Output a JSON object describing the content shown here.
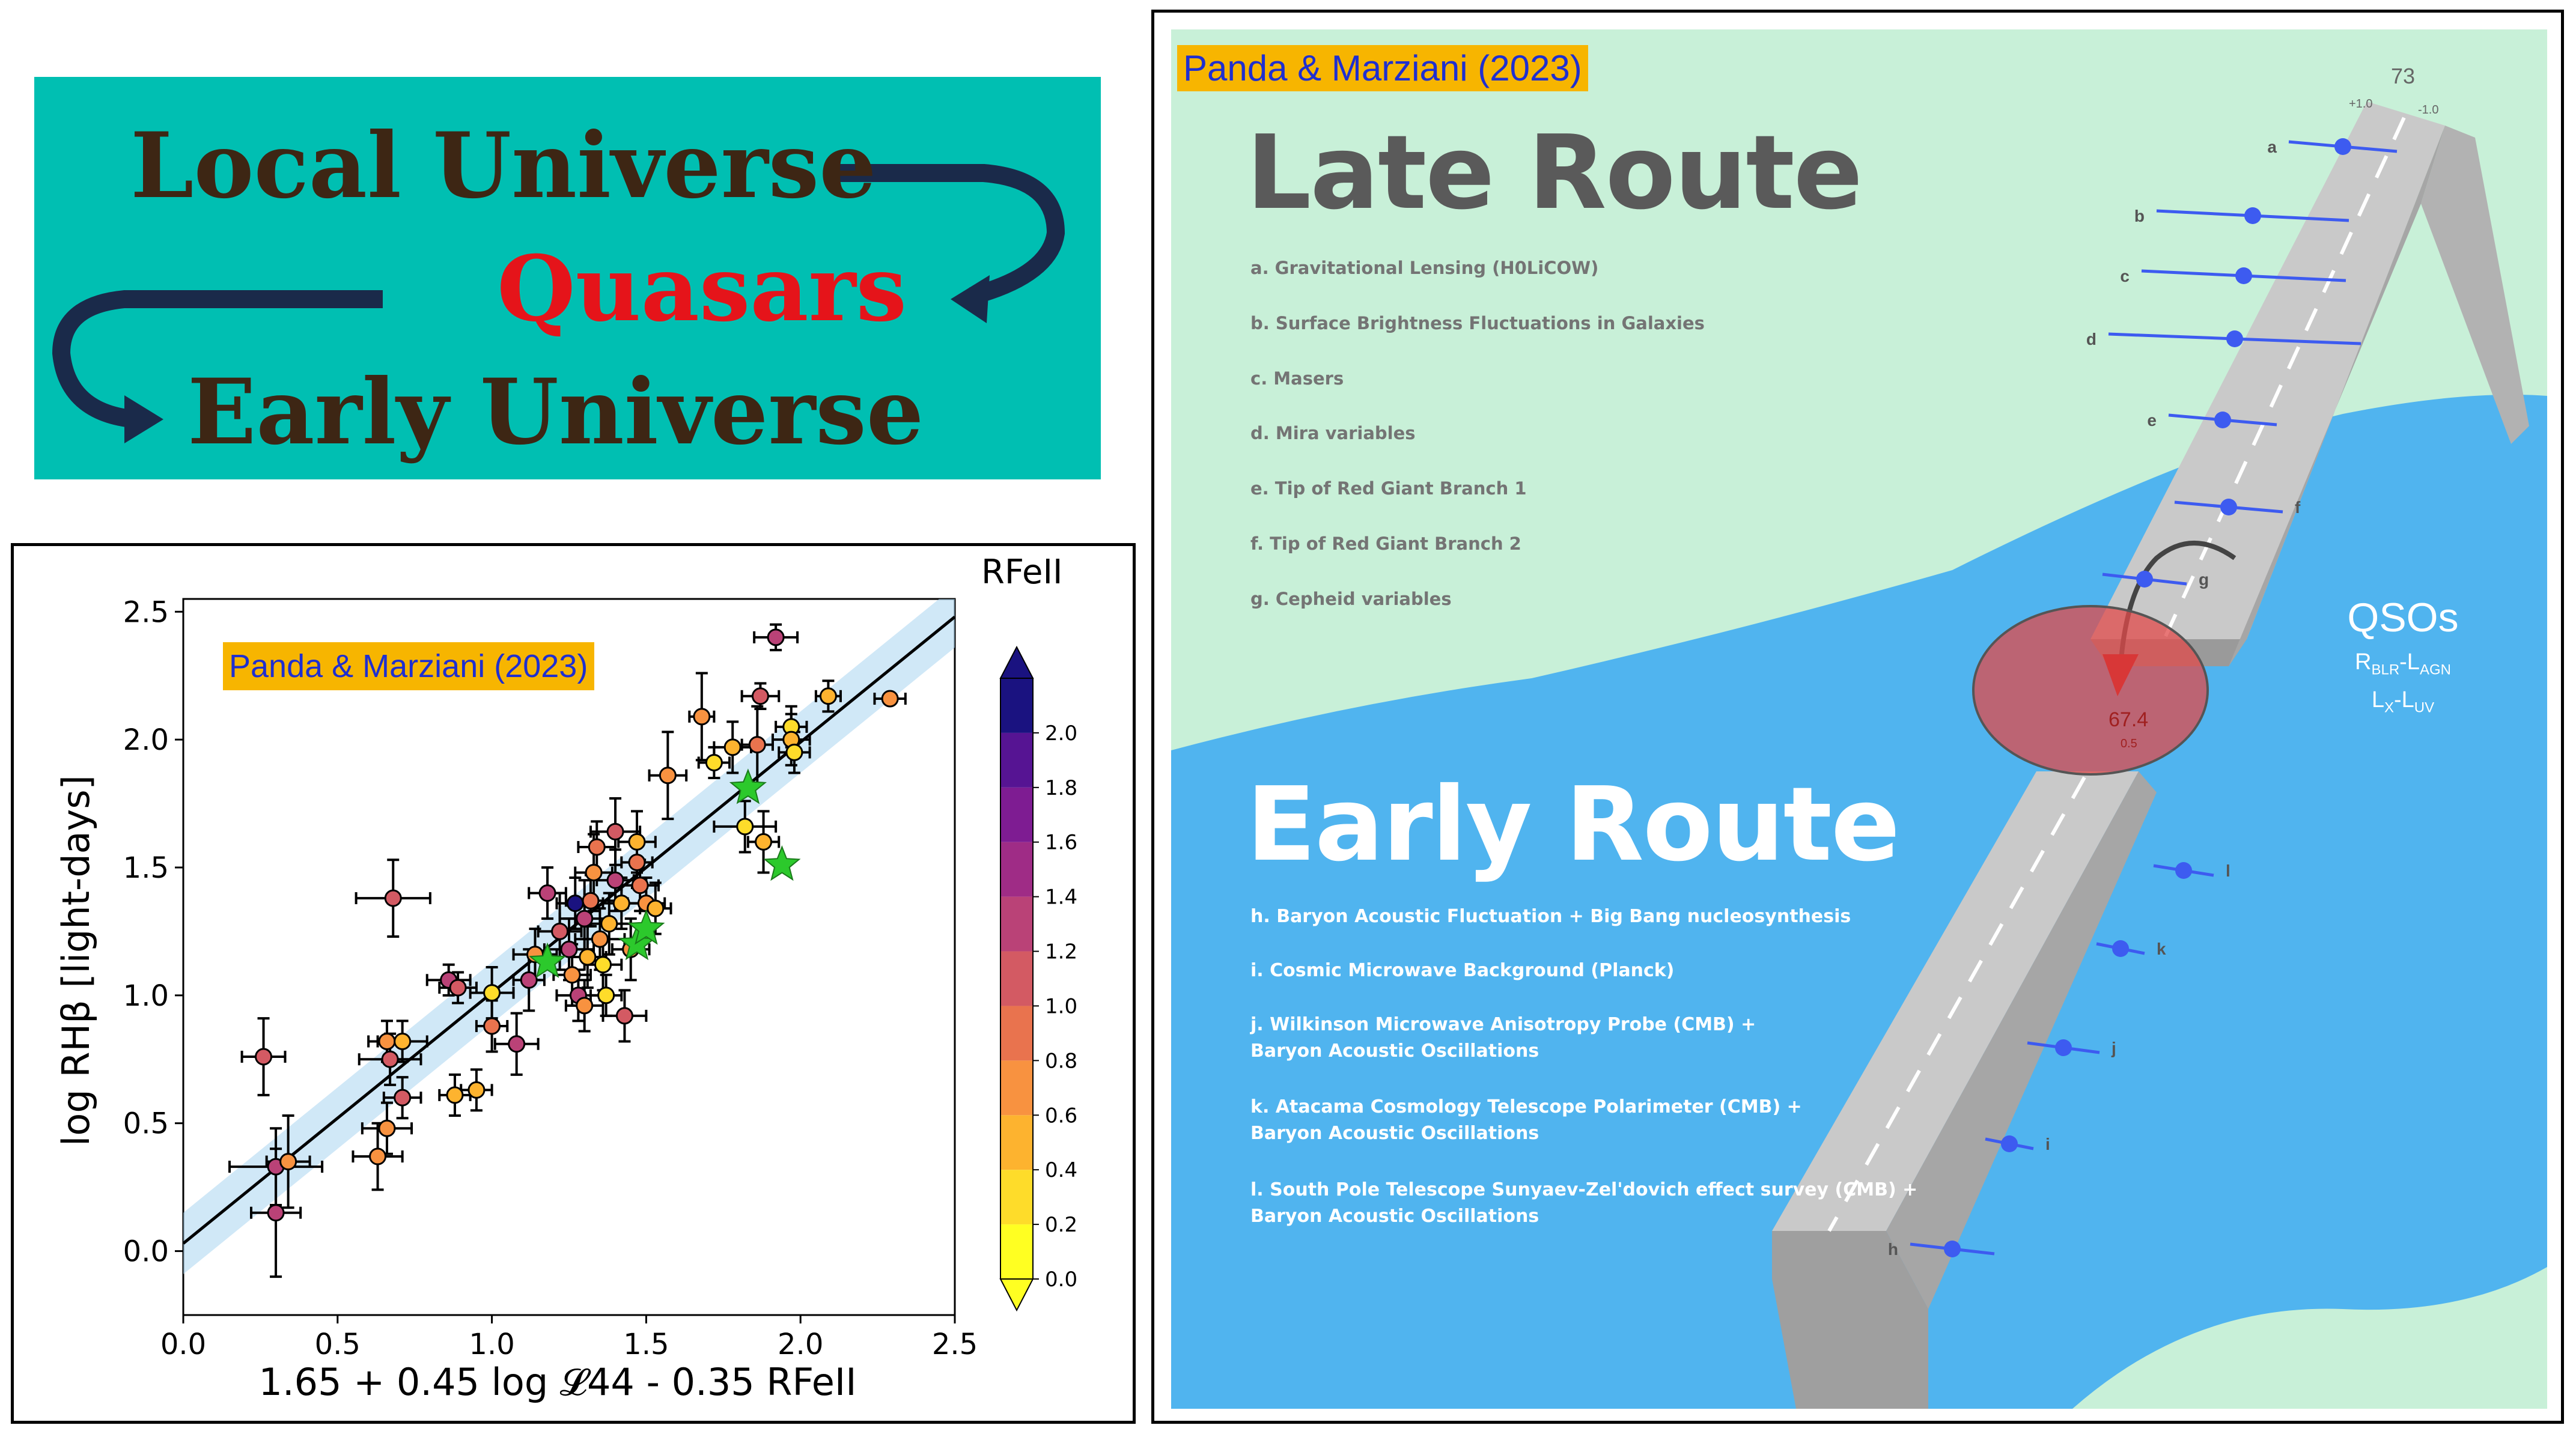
{
  "banner": {
    "line1": "Local Universe",
    "line2": "Quasars",
    "line3": "Early Universe",
    "background": "#00bfb2",
    "text_color": "#3d2614",
    "highlight_color": "#e5141a",
    "arrow_color": "#1a2a4a"
  },
  "chart_data": {
    "type": "scatter",
    "title": "",
    "badge": "Panda & Marziani (2023)",
    "xlabel": "1.65 + 0.45 log 𝓛44 - 0.35 RFeII",
    "ylabel": "log RHβ [light-days]",
    "xlim": [
      0.0,
      2.5
    ],
    "ylim": [
      -0.25,
      2.55
    ],
    "xticks": [
      "0.0",
      "0.5",
      "1.0",
      "1.5",
      "2.0",
      "2.5"
    ],
    "yticks": [
      "0.0",
      "0.5",
      "1.0",
      "1.5",
      "2.0",
      "2.5"
    ],
    "fit_line": {
      "x": [
        0.0,
        2.5
      ],
      "y": [
        0.03,
        2.48
      ],
      "band_halfwidth": 0.12,
      "band_color": "#a9d6f0"
    },
    "colorbar": {
      "label": "RFeII",
      "ticks": [
        "0.0",
        "0.2",
        "0.4",
        "0.6",
        "0.8",
        "1.0",
        "1.2",
        "1.4",
        "1.6",
        "1.8",
        "2.0"
      ],
      "range": [
        0.0,
        2.2
      ],
      "colors": [
        "#ffff22",
        "#fedc2a",
        "#fdb32f",
        "#f89240",
        "#e9734e",
        "#d35a63",
        "#ba4277",
        "#9f2c86",
        "#7e1c92",
        "#561493",
        "#1a1280"
      ]
    },
    "points": [
      {
        "x": 1.92,
        "y": 2.4,
        "xe": 0.07,
        "ye": 0.05,
        "c": 1.4
      },
      {
        "x": 2.29,
        "y": 2.16,
        "xe": 0.05,
        "ye": 0.02,
        "c": 0.6
      },
      {
        "x": 2.09,
        "y": 2.17,
        "xe": 0.04,
        "ye": 0.06,
        "c": 0.4
      },
      {
        "x": 1.97,
        "y": 2.05,
        "xe": 0.05,
        "ye": 0.08,
        "c": 0.2
      },
      {
        "x": 1.97,
        "y": 2.0,
        "xe": 0.06,
        "ye": 0.1,
        "c": 0.4
      },
      {
        "x": 1.87,
        "y": 2.17,
        "xe": 0.06,
        "ye": 0.05,
        "c": 1.0
      },
      {
        "x": 1.68,
        "y": 2.09,
        "xe": 0.04,
        "ye": 0.17,
        "c": 0.6
      },
      {
        "x": 1.78,
        "y": 1.97,
        "xe": 0.06,
        "ye": 0.1,
        "c": 0.4
      },
      {
        "x": 1.86,
        "y": 1.98,
        "xe": 0.05,
        "ye": 0.15,
        "c": 0.8
      },
      {
        "x": 1.98,
        "y": 1.95,
        "xe": 0.05,
        "ye": 0.08,
        "c": 0.2
      },
      {
        "x": 1.72,
        "y": 1.91,
        "xe": 0.05,
        "ye": 0.06,
        "c": 0.2
      },
      {
        "x": 1.57,
        "y": 1.86,
        "xe": 0.06,
        "ye": 0.17,
        "c": 0.6
      },
      {
        "x": 1.82,
        "y": 1.66,
        "xe": 0.1,
        "ye": 0.1,
        "c": 0.2
      },
      {
        "x": 1.88,
        "y": 1.6,
        "xe": 0.05,
        "ye": 0.12,
        "c": 0.4
      },
      {
        "x": 0.68,
        "y": 1.38,
        "xe": 0.12,
        "ye": 0.15,
        "c": 1.0
      },
      {
        "x": 0.26,
        "y": 0.76,
        "xe": 0.07,
        "ye": 0.15,
        "c": 1.0
      },
      {
        "x": 0.3,
        "y": 0.33,
        "xe": 0.15,
        "ye": 0.15,
        "c": 1.2
      },
      {
        "x": 0.34,
        "y": 0.35,
        "xe": 0.07,
        "ye": 0.18,
        "c": 0.6
      },
      {
        "x": 0.3,
        "y": 0.15,
        "xe": 0.08,
        "ye": 0.25,
        "c": 1.2
      },
      {
        "x": 0.63,
        "y": 0.37,
        "xe": 0.08,
        "ye": 0.13,
        "c": 0.6
      },
      {
        "x": 0.66,
        "y": 0.48,
        "xe": 0.08,
        "ye": 0.1,
        "c": 0.6
      },
      {
        "x": 0.71,
        "y": 0.6,
        "xe": 0.06,
        "ye": 0.08,
        "c": 1.0
      },
      {
        "x": 0.67,
        "y": 0.75,
        "xe": 0.1,
        "ye": 0.1,
        "c": 1.0
      },
      {
        "x": 0.66,
        "y": 0.82,
        "xe": 0.06,
        "ye": 0.08,
        "c": 0.6
      },
      {
        "x": 0.71,
        "y": 0.82,
        "xe": 0.08,
        "ye": 0.08,
        "c": 0.4
      },
      {
        "x": 0.88,
        "y": 0.61,
        "xe": 0.05,
        "ye": 0.08,
        "c": 0.4
      },
      {
        "x": 0.95,
        "y": 0.63,
        "xe": 0.05,
        "ye": 0.08,
        "c": 0.4
      },
      {
        "x": 0.86,
        "y": 1.06,
        "xe": 0.07,
        "ye": 0.06,
        "c": 1.2
      },
      {
        "x": 0.89,
        "y": 1.03,
        "xe": 0.06,
        "ye": 0.06,
        "c": 1.0
      },
      {
        "x": 1.0,
        "y": 1.01,
        "xe": 0.07,
        "ye": 0.1,
        "c": 0.2
      },
      {
        "x": 1.0,
        "y": 0.88,
        "xe": 0.05,
        "ye": 0.1,
        "c": 0.8
      },
      {
        "x": 1.08,
        "y": 0.81,
        "xe": 0.07,
        "ye": 0.12,
        "c": 1.2
      },
      {
        "x": 1.12,
        "y": 1.06,
        "xe": 0.05,
        "ye": 0.12,
        "c": 1.4
      },
      {
        "x": 1.14,
        "y": 1.16,
        "xe": 0.07,
        "ye": 0.1,
        "c": 0.6
      },
      {
        "x": 1.18,
        "y": 1.4,
        "xe": 0.06,
        "ye": 0.1,
        "c": 1.4
      },
      {
        "x": 1.22,
        "y": 1.25,
        "xe": 0.07,
        "ye": 0.15,
        "c": 1.0
      },
      {
        "x": 1.25,
        "y": 1.18,
        "xe": 0.08,
        "ye": 0.12,
        "c": 1.2
      },
      {
        "x": 1.26,
        "y": 1.08,
        "xe": 0.06,
        "ye": 0.12,
        "c": 0.6
      },
      {
        "x": 1.28,
        "y": 1.0,
        "xe": 0.07,
        "ye": 0.1,
        "c": 1.4
      },
      {
        "x": 1.3,
        "y": 0.96,
        "xe": 0.06,
        "ye": 0.1,
        "c": 0.6
      },
      {
        "x": 1.3,
        "y": 1.3,
        "xe": 0.08,
        "ye": 0.15,
        "c": 1.2
      },
      {
        "x": 1.31,
        "y": 1.15,
        "xe": 0.06,
        "ye": 0.12,
        "c": 0.4
      },
      {
        "x": 1.32,
        "y": 1.37,
        "xe": 0.08,
        "ye": 0.1,
        "c": 0.8
      },
      {
        "x": 1.33,
        "y": 1.48,
        "xe": 0.06,
        "ye": 0.15,
        "c": 0.6
      },
      {
        "x": 1.34,
        "y": 1.58,
        "xe": 0.06,
        "ye": 0.1,
        "c": 0.8
      },
      {
        "x": 1.35,
        "y": 1.22,
        "xe": 0.08,
        "ye": 0.12,
        "c": 0.6
      },
      {
        "x": 1.36,
        "y": 1.12,
        "xe": 0.06,
        "ye": 0.1,
        "c": 0.2
      },
      {
        "x": 1.38,
        "y": 1.28,
        "xe": 0.07,
        "ye": 0.12,
        "c": 0.4
      },
      {
        "x": 1.4,
        "y": 1.64,
        "xe": 0.08,
        "ye": 0.13,
        "c": 1.0
      },
      {
        "x": 1.4,
        "y": 1.45,
        "xe": 0.06,
        "ye": 0.12,
        "c": 1.2
      },
      {
        "x": 1.42,
        "y": 1.36,
        "xe": 0.06,
        "ye": 0.1,
        "c": 0.4
      },
      {
        "x": 1.43,
        "y": 0.92,
        "xe": 0.07,
        "ye": 0.1,
        "c": 1.0
      },
      {
        "x": 1.45,
        "y": 1.18,
        "xe": 0.06,
        "ye": 0.12,
        "c": 0.6
      },
      {
        "x": 1.47,
        "y": 1.6,
        "xe": 0.06,
        "ye": 0.12,
        "c": 0.4
      },
      {
        "x": 1.47,
        "y": 1.52,
        "xe": 0.05,
        "ye": 0.1,
        "c": 0.8
      },
      {
        "x": 1.48,
        "y": 1.43,
        "xe": 0.06,
        "ye": 0.1,
        "c": 0.8
      },
      {
        "x": 1.5,
        "y": 1.36,
        "xe": 0.06,
        "ye": 0.1,
        "c": 0.6
      },
      {
        "x": 1.53,
        "y": 1.34,
        "xe": 0.05,
        "ye": 0.1,
        "c": 0.4
      },
      {
        "x": 1.27,
        "y": 1.36,
        "xe": 0.06,
        "ye": 0.1,
        "c": 2.0
      },
      {
        "x": 1.37,
        "y": 1.0,
        "xe": 0.05,
        "ye": 0.08,
        "c": 0.2
      }
    ],
    "stars": [
      {
        "x": 1.18,
        "y": 1.13
      },
      {
        "x": 1.47,
        "y": 1.2
      },
      {
        "x": 1.5,
        "y": 1.26
      },
      {
        "x": 1.83,
        "y": 1.81
      },
      {
        "x": 1.94,
        "y": 1.51
      }
    ],
    "star_color": "#2cc92c"
  },
  "route": {
    "badge": "Panda & Marziani (2023)",
    "background_top": "#c8f0d8",
    "water": "#50b4ef",
    "late_title": "Late Route",
    "late_items": [
      "a. Gravitational Lensing (H0LiCOW)",
      "b. Surface Brightness Fluctuations in Galaxies",
      "c. Masers",
      "d. Mira variables",
      "e. Tip of Red Giant Branch 1",
      "f. Tip of Red Giant Branch 2",
      "g. Cepheid variables"
    ],
    "early_title": "Early Route",
    "early_items": [
      "h. Baryon Acoustic Fluctuation + Big Bang nucleosynthesis",
      "i. Cosmic Microwave Background (Planck)",
      "j. Wilkinson Microwave Anisotropy Probe (CMB) +\nBaryon Acoustic Oscillations",
      "k. Atacama Cosmology Telescope Polarimeter (CMB) +\nBaryon Acoustic Oscillations",
      "l. South Pole Telescope Sunyaev-Zel'dovich effect survey (CMB) +\nBaryon Acoustic Oscillations"
    ],
    "qso_title": "QSOs",
    "qso_rel1_a": "R",
    "qso_rel1_a_sub": "BLR",
    "qso_rel1_b": "-L",
    "qso_rel1_b_sub": "AGN",
    "qso_rel2_a": "L",
    "qso_rel2_a_sub": "X",
    "qso_rel2_b": "-L",
    "qso_rel2_b_sub": "UV",
    "late_value": "73",
    "late_plus": "+1.0",
    "late_minus": "-1.0",
    "early_value": "67.4",
    "early_small": "0.5",
    "late_labels": [
      "a",
      "b",
      "c",
      "d",
      "e",
      "f",
      "g"
    ],
    "early_labels": [
      "l",
      "k",
      "j",
      "i",
      "h"
    ],
    "marker_color": "#3d5bf0"
  }
}
